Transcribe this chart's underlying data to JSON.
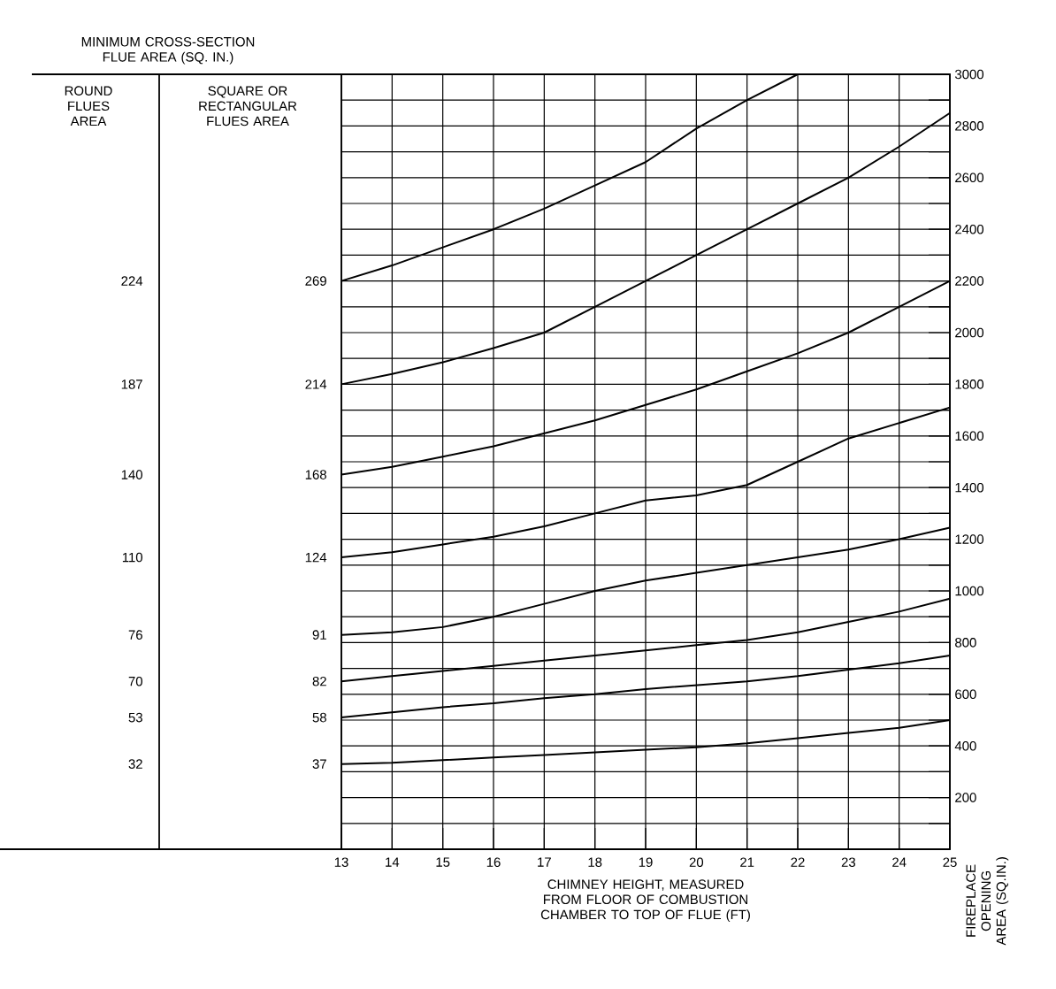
{
  "chart_data": {
    "type": "line",
    "title": "MINIMUM CROSS-SECTION FLUE AREA (SQ. IN.)",
    "xlabel": "CHIMNEY HEIGHT, MEASURED FROM FLOOR OF COMBUSTION CHAMBER TO TOP OF FLUE (FT)",
    "ylabel": "FIREPLACE OPENING AREA (SQ.IN.)",
    "annotations": [
      "ROUND FLUES AREA",
      "SQUARE OR RECTANGULAR FLUES AREA",
      "224",
      "187",
      "140",
      "110",
      "76",
      "70",
      "53",
      "32"
    ],
    "x": [
      13,
      14,
      15,
      16,
      17,
      18,
      19,
      20,
      21,
      22,
      23,
      24,
      25
    ],
    "series": [
      {
        "name": "269",
        "color": "#000000",
        "values": [
          2200,
          2260,
          2330,
          2400,
          2480,
          2570,
          2660,
          2790,
          2900,
          3000,
          null,
          null,
          null
        ]
      },
      {
        "name": "214",
        "color": "#000000",
        "values": [
          1800,
          1840,
          1885,
          1940,
          2000,
          2100,
          2200,
          2300,
          2400,
          2500,
          2600,
          2720,
          2850
        ]
      },
      {
        "name": "168",
        "color": "#000000",
        "values": [
          1450,
          1480,
          1520,
          1560,
          1610,
          1660,
          1720,
          1780,
          1850,
          1920,
          2000,
          2100,
          2200
        ]
      },
      {
        "name": "124",
        "color": "#000000",
        "values": [
          1130,
          1150,
          1180,
          1210,
          1250,
          1300,
          1350,
          1370,
          1410,
          1500,
          1590,
          1650,
          1710
        ]
      },
      {
        "name": "91",
        "color": "#000000",
        "values": [
          830,
          840,
          860,
          900,
          950,
          1000,
          1040,
          1070,
          1100,
          1130,
          1160,
          1200,
          1245
        ]
      },
      {
        "name": "82",
        "color": "#000000",
        "values": [
          650,
          670,
          690,
          710,
          730,
          750,
          770,
          790,
          810,
          840,
          880,
          920,
          970
        ]
      },
      {
        "name": "58",
        "color": "#000000",
        "values": [
          510,
          530,
          550,
          565,
          585,
          600,
          620,
          635,
          650,
          670,
          695,
          720,
          750
        ]
      },
      {
        "name": "37",
        "color": "#000000",
        "values": [
          330,
          335,
          345,
          355,
          365,
          375,
          385,
          395,
          410,
          430,
          450,
          470,
          500
        ]
      }
    ],
    "xlim": [
      13,
      25
    ],
    "ylim": [
      0,
      3000
    ],
    "xticks": [
      13,
      14,
      15,
      16,
      17,
      18,
      19,
      20,
      21,
      22,
      23,
      24,
      25
    ],
    "yticks": [
      {
        "value": 100,
        "label": null
      },
      200,
      {
        "value": 300,
        "label": null
      },
      400,
      {
        "value": 500,
        "label": null
      },
      600,
      {
        "value": 700,
        "label": null
      },
      800,
      {
        "value": 900,
        "label": null
      },
      1000,
      {
        "value": 1100,
        "label": null
      },
      1200,
      {
        "value": 1300,
        "label": null
      },
      1400,
      {
        "value": 1500,
        "label": null
      },
      1600,
      {
        "value": 1700,
        "label": null
      },
      1800,
      {
        "value": 1900,
        "label": null
      },
      2000,
      {
        "value": 2100,
        "label": null
      },
      2200,
      {
        "value": 2300,
        "label": null
      },
      2400,
      {
        "value": 2500,
        "label": null
      },
      2600,
      {
        "value": 2700,
        "label": null
      },
      2800,
      {
        "value": 2900,
        "label": null
      },
      3000
    ],
    "grid": true,
    "marker": "none",
    "line_style": "solid"
  }
}
